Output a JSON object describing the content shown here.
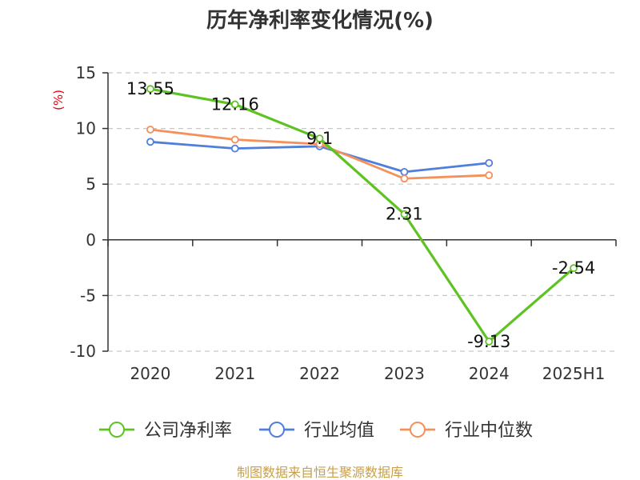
{
  "colors": {
    "company": "#5ec322",
    "industry_avg": "#4f7fdb",
    "industry_median": "#f4905a",
    "axis": "#333333",
    "grid": "#c8c8c8",
    "source": "#c8a04a",
    "ylabel": "#e60012"
  },
  "source_text": "制图数据来自恒生聚源数据库",
  "chart_data": {
    "type": "line",
    "title": "历年净利率变化情况(%)",
    "ylabel": "(%)",
    "xlabel": "",
    "categories": [
      "2020",
      "2021",
      "2022",
      "2023",
      "2024",
      "2025H1"
    ],
    "yticks": [
      "15",
      "10",
      "5",
      "0",
      "-5",
      "-10"
    ],
    "ylim": [
      -10,
      15
    ],
    "grid": "horizontal dashed",
    "legend_position": "bottom",
    "series": [
      {
        "name": "公司净利率",
        "color_key": "company",
        "values": [
          13.55,
          12.16,
          9.1,
          2.31,
          -9.13,
          -2.54
        ],
        "labels": [
          "13.55",
          "12.16",
          "9.1",
          "2.31",
          "-9.13",
          "-2.54"
        ]
      },
      {
        "name": "行业均值",
        "color_key": "industry_avg",
        "values": [
          8.8,
          8.2,
          8.4,
          6.1,
          6.9,
          null
        ]
      },
      {
        "name": "行业中位数",
        "color_key": "industry_median",
        "values": [
          9.9,
          9.0,
          8.6,
          5.5,
          5.8,
          null
        ]
      }
    ]
  }
}
